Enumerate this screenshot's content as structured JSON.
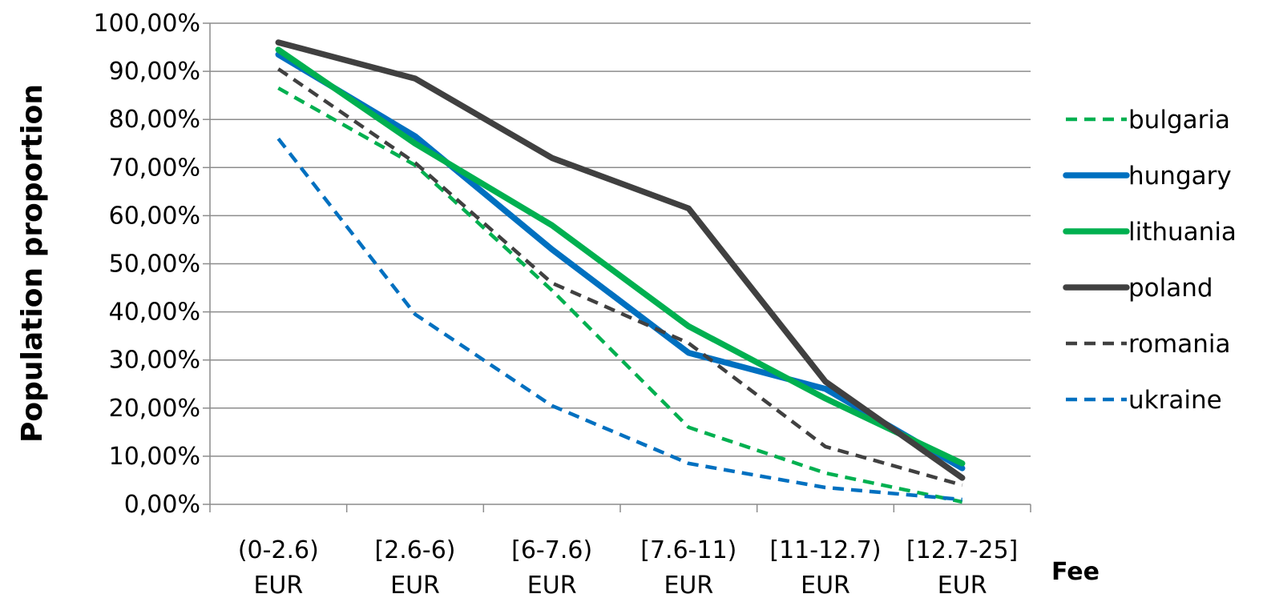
{
  "chart_data": {
    "type": "line",
    "title": "",
    "xlabel": "Fee",
    "ylabel": "Population proportion",
    "categories": [
      [
        "(0-2.6)",
        "EUR"
      ],
      [
        "[2.6-6)",
        "EUR"
      ],
      [
        "[6-7.6)",
        "EUR"
      ],
      [
        "[7.6-11)",
        "EUR"
      ],
      [
        "[11-12.7)",
        "EUR"
      ],
      [
        "[12.7-25]",
        "EUR"
      ]
    ],
    "yticks": [
      "0,00%",
      "10,00%",
      "20,00%",
      "30,00%",
      "40,00%",
      "50,00%",
      "60,00%",
      "70,00%",
      "80,00%",
      "90,00%",
      "100,00%"
    ],
    "ylim": [
      0,
      100
    ],
    "grid": true,
    "legend_position": "right",
    "series": [
      {
        "name": "bulgaria",
        "color": "#00b050",
        "dash": true,
        "values": [
          86.5,
          70.5,
          44.5,
          16.0,
          6.5,
          0.5
        ]
      },
      {
        "name": "hungary",
        "color": "#0070c0",
        "dash": false,
        "values": [
          93.5,
          76.5,
          53.0,
          31.5,
          24.0,
          7.5
        ]
      },
      {
        "name": "lithuania",
        "color": "#00b050",
        "dash": false,
        "values": [
          94.5,
          75.0,
          58.0,
          37.0,
          22.0,
          8.5
        ]
      },
      {
        "name": "poland",
        "color": "#404040",
        "dash": false,
        "values": [
          96.0,
          88.5,
          72.0,
          61.5,
          25.5,
          5.5
        ]
      },
      {
        "name": "romania",
        "color": "#404040",
        "dash": true,
        "values": [
          90.5,
          71.0,
          46.0,
          33.5,
          12.0,
          4.0
        ]
      },
      {
        "name": "ukraine",
        "color": "#0070c0",
        "dash": true,
        "values": [
          76.0,
          39.5,
          20.5,
          8.5,
          3.5,
          1.0
        ]
      }
    ]
  }
}
